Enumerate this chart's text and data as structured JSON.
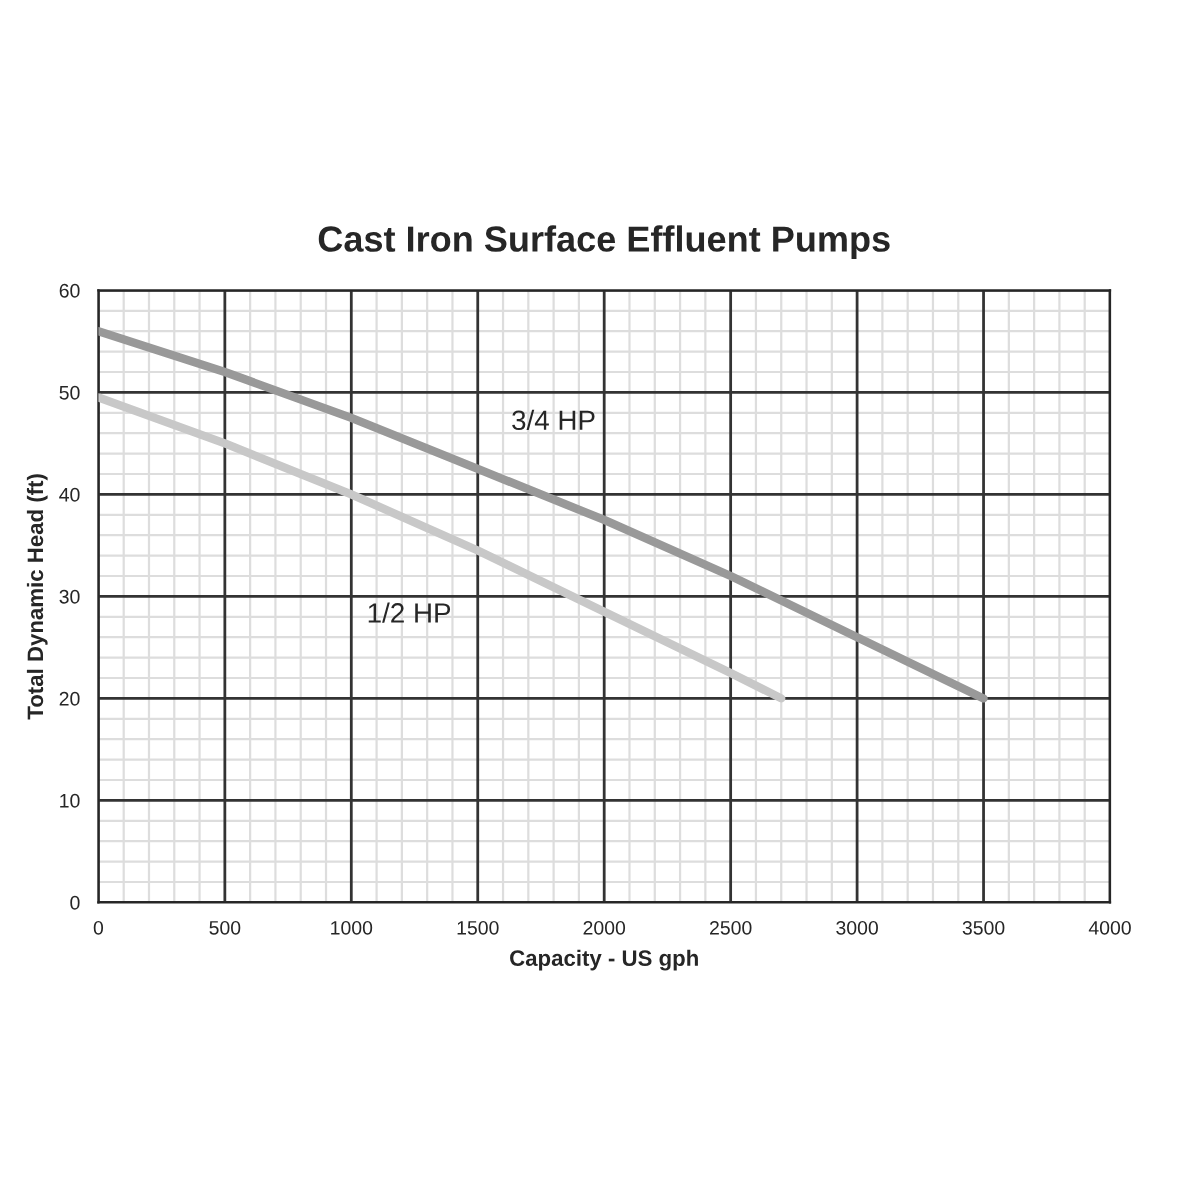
{
  "chart_data": {
    "type": "line",
    "title": "Cast Iron Surface Effluent Pumps",
    "xlabel": "Capacity - US gph",
    "ylabel": "Total Dynamic Head (ft)",
    "x": [
      0,
      500,
      1000,
      1500,
      2000,
      2500,
      3000,
      3500
    ],
    "series": [
      {
        "name": "3/4 HP",
        "color": "#999999",
        "values": [
          56,
          52,
          47.5,
          42.5,
          37.5,
          32,
          26,
          20
        ]
      },
      {
        "name": "1/2 HP",
        "color": "#c8c8c8",
        "x": [
          0,
          500,
          1000,
          1500,
          2000,
          2500,
          2700
        ],
        "values": [
          49.5,
          45,
          40,
          34.5,
          28.5,
          22.5,
          20
        ]
      }
    ],
    "xlim": [
      0,
      4000
    ],
    "xticks": [
      0,
      500,
      1000,
      1500,
      2000,
      2500,
      3000,
      3500,
      4000
    ],
    "ylim": [
      0,
      60
    ],
    "yticks": [
      0,
      10,
      20,
      30,
      40,
      50,
      60
    ],
    "grid": true,
    "legend": false,
    "marker": "none",
    "line_style": "solid"
  }
}
